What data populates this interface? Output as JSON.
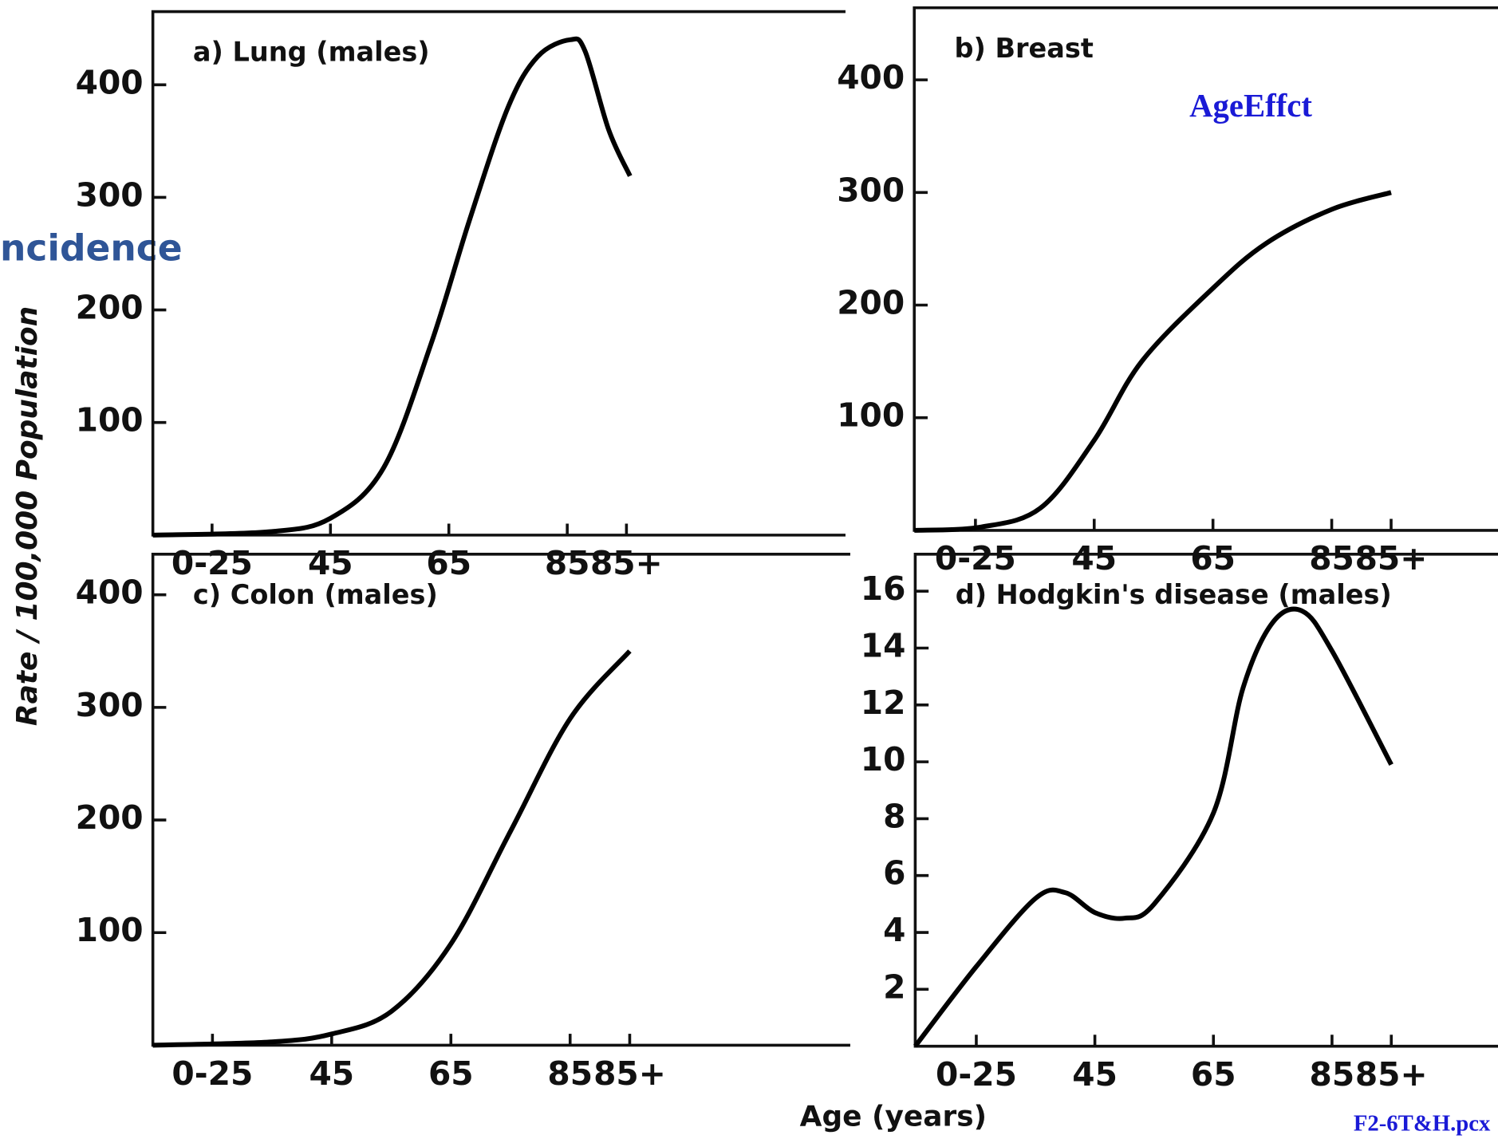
{
  "chart_data": [
    {
      "type": "line",
      "title": "a) Lung (males)",
      "x": [
        15,
        34.7,
        45,
        54,
        62,
        68.5,
        75,
        80,
        85.5,
        88,
        92,
        95.6
      ],
      "values": [
        0,
        3,
        15,
        60,
        170,
        280,
        380,
        425,
        440,
        430,
        360,
        319
      ],
      "color": "#000000",
      "xlim": [
        15,
        132
      ],
      "ylim": [
        0,
        465
      ],
      "yticks": [
        100,
        200,
        300,
        400
      ],
      "xticks": [
        {
          "value": 25,
          "label": "0-25"
        },
        45,
        65,
        85,
        {
          "value": 95,
          "label": "85+"
        }
      ]
    },
    {
      "type": "line",
      "title": "b) Breast",
      "x": [
        14.7,
        26,
        36,
        45,
        53,
        65,
        74,
        85,
        95
      ],
      "values": [
        0,
        3,
        20,
        80,
        150,
        215,
        255,
        285,
        300
      ],
      "color": "#000000",
      "xlim": [
        14.7,
        113
      ],
      "ylim": [
        0,
        464
      ],
      "yticks": [
        100,
        200,
        300,
        400
      ],
      "xticks": [
        {
          "value": 25,
          "label": "0-25"
        },
        45,
        65,
        85,
        {
          "value": 95,
          "label": "85+"
        }
      ]
    },
    {
      "type": "line",
      "title": "c) Colon (males)",
      "x": [
        15,
        35,
        45,
        55,
        65,
        75,
        85,
        95
      ],
      "values": [
        0,
        3,
        10,
        30,
        90,
        190,
        290,
        350
      ],
      "color": "#000000",
      "xlim": [
        15,
        132
      ],
      "ylim": [
        0,
        436
      ],
      "yticks": [
        100,
        200,
        300,
        400
      ],
      "xticks": [
        {
          "value": 25,
          "label": "0-25"
        },
        45,
        65,
        85,
        {
          "value": 95,
          "label": "85+"
        }
      ]
    },
    {
      "type": "line",
      "title": "d) Hodgkin's disease (males)",
      "x": [
        14.7,
        25,
        35,
        40,
        45,
        50,
        55,
        65,
        70,
        75,
        80,
        85,
        95
      ],
      "values": [
        0,
        2.8,
        5.2,
        5.4,
        4.7,
        4.5,
        5.0,
        8.2,
        12.6,
        14.9,
        15.3,
        13.9,
        9.9
      ],
      "color": "#000000",
      "xlim": [
        14.7,
        113
      ],
      "ylim": [
        0,
        17.3
      ],
      "yticks": [
        2,
        4,
        6,
        8,
        10,
        12,
        14,
        16
      ],
      "xticks": [
        {
          "value": 25,
          "label": "0-25"
        },
        45,
        65,
        85,
        {
          "value": 95,
          "label": "85+"
        }
      ]
    }
  ],
  "y_axis_label": "Rate / 100,000 Population",
  "x_axis_label": "Age (years)",
  "overlay_left": "ncidence",
  "overlay_right": "AgeEffct",
  "file_label": "F2-6T&H.pcx"
}
